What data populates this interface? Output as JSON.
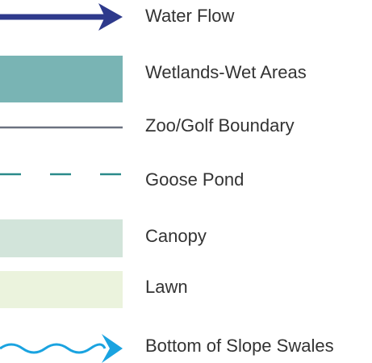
{
  "legend": {
    "items": [
      {
        "label": "Water Flow"
      },
      {
        "label": "Wetlands-Wet Areas"
      },
      {
        "label": "Zoo/Golf Boundary"
      },
      {
        "label": "Goose Pond"
      },
      {
        "label": "Canopy"
      },
      {
        "label": "Lawn"
      },
      {
        "label": "Bottom of Slope Swales"
      }
    ]
  }
}
